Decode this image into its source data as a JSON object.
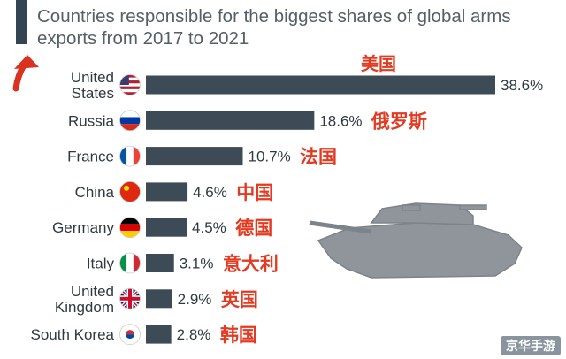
{
  "title": "Countries responsible for the biggest shares of global arms exports from 2017 to 2021",
  "chart_data": {
    "type": "bar",
    "orientation": "horizontal",
    "categories": [
      "United States",
      "Russia",
      "France",
      "China",
      "Germany",
      "Italy",
      "United Kingdom",
      "South Korea"
    ],
    "category_lines": [
      [
        "United",
        "States"
      ],
      [
        "Russia"
      ],
      [
        "France"
      ],
      [
        "China"
      ],
      [
        "Germany"
      ],
      [
        "Italy"
      ],
      [
        "United",
        "Kingdom"
      ],
      [
        "South Korea"
      ]
    ],
    "values": [
      38.6,
      18.6,
      10.7,
      4.6,
      4.5,
      3.1,
      2.9,
      2.8
    ],
    "value_labels": [
      "38.6%",
      "18.6%",
      "10.7%",
      "4.6%",
      "4.5%",
      "3.1%",
      "2.9%",
      "2.8%"
    ],
    "chinese_labels": [
      "美国",
      "俄罗斯",
      "法国",
      "中国",
      "德国",
      "意大利",
      "英国",
      "韩国"
    ],
    "bar_color": "#3c4b55",
    "annotation_color": "#e23b22"
  },
  "watermark": "京华手游"
}
